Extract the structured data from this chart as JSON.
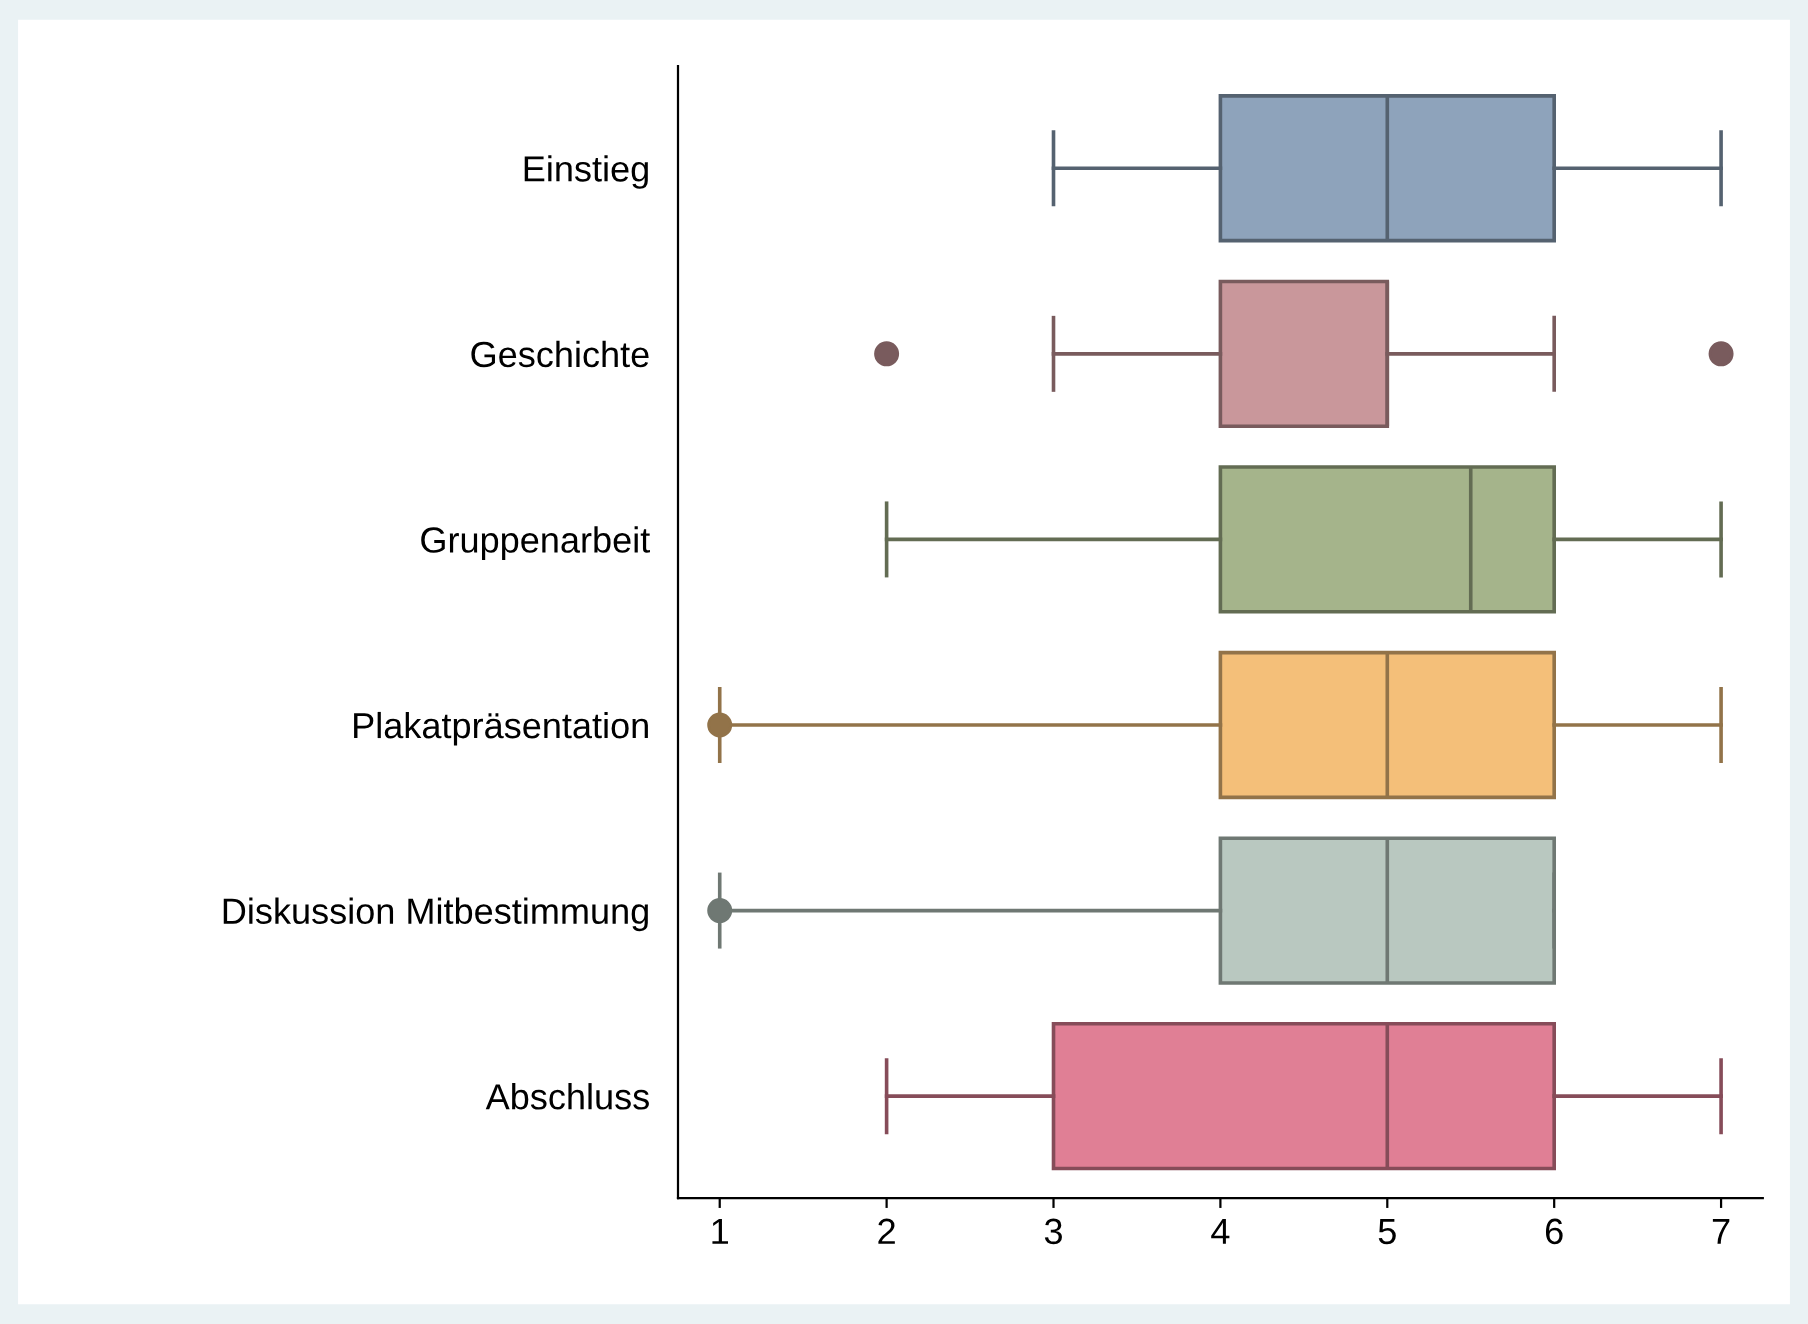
{
  "chart_data": {
    "type": "box",
    "orientation": "horizontal",
    "categories": [
      "Einstieg",
      "Geschichte",
      "Gruppenarbeit",
      "Plakatpräsentation",
      "Diskussion Mitbestimmung",
      "Abschluss"
    ],
    "boxes": [
      {
        "low": 3,
        "q1": 4,
        "median": 5,
        "q3": 6,
        "high": 7
      },
      {
        "low": 3,
        "q1": 4,
        "median": 5,
        "q3": 5,
        "high": 6,
        "outliers": [
          2,
          7
        ]
      },
      {
        "low": 2,
        "q1": 4,
        "median": 5.5,
        "q3": 6,
        "high": 7
      },
      {
        "low": 1,
        "q1": 4,
        "median": 5,
        "q3": 6,
        "high": 7,
        "outliers": [
          1
        ]
      },
      {
        "low": 1,
        "q1": 4,
        "median": 5,
        "q3": 6,
        "high": 6,
        "outliers": [
          1
        ]
      },
      {
        "low": 2,
        "q1": 3,
        "median": 5,
        "q3": 6,
        "high": 7
      }
    ],
    "colors": [
      "#8ea3bb",
      "#c9979b",
      "#a5b48b",
      "#f4bf79",
      "#b9c8c0",
      "#e07f95"
    ],
    "xlim": [
      0.75,
      7.25
    ],
    "xticks": [
      1,
      2,
      3,
      4,
      5,
      6,
      7
    ],
    "grid": false
  }
}
